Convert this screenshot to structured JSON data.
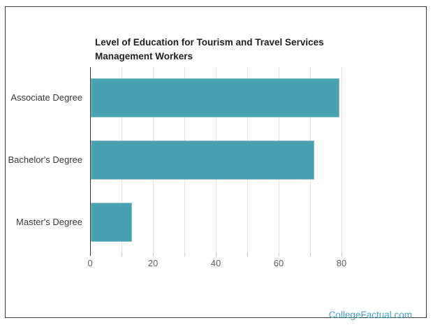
{
  "branding": {
    "watermark": "CollegeFactual.com",
    "watermark_color": "#44a1c9"
  },
  "chart_data": {
    "type": "bar",
    "orientation": "horizontal",
    "title": "Level of Education for Tourism and Travel Services\nManagement Workers",
    "categories": [
      "Associate Degree",
      "Bachelor's Degree",
      "Master's Degree"
    ],
    "values": [
      79,
      71,
      13
    ],
    "xlabel": "",
    "ylabel": "",
    "xlim": [
      0,
      85.3
    ],
    "x_major_ticks": [
      0,
      20,
      40,
      60,
      80
    ],
    "gridline_step": 10,
    "grid": true,
    "legend": "none",
    "bar_color": "#49a0ae",
    "axis_line_color": "#333333",
    "gridline_color": "#e4e4e4",
    "tick_mark_color": "#c9c9c9",
    "tick_label_color": "#616161",
    "category_label_color": "#383838",
    "title_color": "#1e1e1e"
  }
}
